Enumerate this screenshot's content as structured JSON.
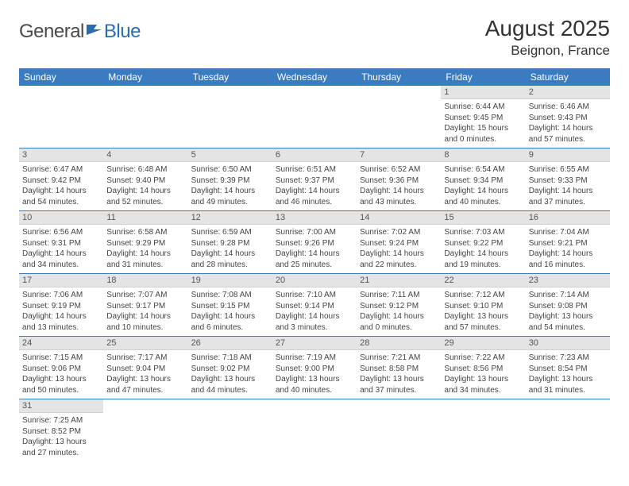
{
  "logo": {
    "general": "General",
    "blue": "Blue"
  },
  "title": "August 2025",
  "location": "Beignon, France",
  "colors": {
    "header_bg": "#3b7bbf",
    "header_text": "#ffffff",
    "daynum_bg": "#e4e4e4",
    "row_border": "#3b7bbf",
    "logo_gray": "#4a4a4a",
    "logo_blue": "#2b6bb0"
  },
  "weekdays": [
    "Sunday",
    "Monday",
    "Tuesday",
    "Wednesday",
    "Thursday",
    "Friday",
    "Saturday"
  ],
  "weeks": [
    [
      null,
      null,
      null,
      null,
      null,
      {
        "n": "1",
        "sr": "Sunrise: 6:44 AM",
        "ss": "Sunset: 9:45 PM",
        "dl": "Daylight: 15 hours and 0 minutes."
      },
      {
        "n": "2",
        "sr": "Sunrise: 6:46 AM",
        "ss": "Sunset: 9:43 PM",
        "dl": "Daylight: 14 hours and 57 minutes."
      }
    ],
    [
      {
        "n": "3",
        "sr": "Sunrise: 6:47 AM",
        "ss": "Sunset: 9:42 PM",
        "dl": "Daylight: 14 hours and 54 minutes."
      },
      {
        "n": "4",
        "sr": "Sunrise: 6:48 AM",
        "ss": "Sunset: 9:40 PM",
        "dl": "Daylight: 14 hours and 52 minutes."
      },
      {
        "n": "5",
        "sr": "Sunrise: 6:50 AM",
        "ss": "Sunset: 9:39 PM",
        "dl": "Daylight: 14 hours and 49 minutes."
      },
      {
        "n": "6",
        "sr": "Sunrise: 6:51 AM",
        "ss": "Sunset: 9:37 PM",
        "dl": "Daylight: 14 hours and 46 minutes."
      },
      {
        "n": "7",
        "sr": "Sunrise: 6:52 AM",
        "ss": "Sunset: 9:36 PM",
        "dl": "Daylight: 14 hours and 43 minutes."
      },
      {
        "n": "8",
        "sr": "Sunrise: 6:54 AM",
        "ss": "Sunset: 9:34 PM",
        "dl": "Daylight: 14 hours and 40 minutes."
      },
      {
        "n": "9",
        "sr": "Sunrise: 6:55 AM",
        "ss": "Sunset: 9:33 PM",
        "dl": "Daylight: 14 hours and 37 minutes."
      }
    ],
    [
      {
        "n": "10",
        "sr": "Sunrise: 6:56 AM",
        "ss": "Sunset: 9:31 PM",
        "dl": "Daylight: 14 hours and 34 minutes."
      },
      {
        "n": "11",
        "sr": "Sunrise: 6:58 AM",
        "ss": "Sunset: 9:29 PM",
        "dl": "Daylight: 14 hours and 31 minutes."
      },
      {
        "n": "12",
        "sr": "Sunrise: 6:59 AM",
        "ss": "Sunset: 9:28 PM",
        "dl": "Daylight: 14 hours and 28 minutes."
      },
      {
        "n": "13",
        "sr": "Sunrise: 7:00 AM",
        "ss": "Sunset: 9:26 PM",
        "dl": "Daylight: 14 hours and 25 minutes."
      },
      {
        "n": "14",
        "sr": "Sunrise: 7:02 AM",
        "ss": "Sunset: 9:24 PM",
        "dl": "Daylight: 14 hours and 22 minutes."
      },
      {
        "n": "15",
        "sr": "Sunrise: 7:03 AM",
        "ss": "Sunset: 9:22 PM",
        "dl": "Daylight: 14 hours and 19 minutes."
      },
      {
        "n": "16",
        "sr": "Sunrise: 7:04 AM",
        "ss": "Sunset: 9:21 PM",
        "dl": "Daylight: 14 hours and 16 minutes."
      }
    ],
    [
      {
        "n": "17",
        "sr": "Sunrise: 7:06 AM",
        "ss": "Sunset: 9:19 PM",
        "dl": "Daylight: 14 hours and 13 minutes."
      },
      {
        "n": "18",
        "sr": "Sunrise: 7:07 AM",
        "ss": "Sunset: 9:17 PM",
        "dl": "Daylight: 14 hours and 10 minutes."
      },
      {
        "n": "19",
        "sr": "Sunrise: 7:08 AM",
        "ss": "Sunset: 9:15 PM",
        "dl": "Daylight: 14 hours and 6 minutes."
      },
      {
        "n": "20",
        "sr": "Sunrise: 7:10 AM",
        "ss": "Sunset: 9:14 PM",
        "dl": "Daylight: 14 hours and 3 minutes."
      },
      {
        "n": "21",
        "sr": "Sunrise: 7:11 AM",
        "ss": "Sunset: 9:12 PM",
        "dl": "Daylight: 14 hours and 0 minutes."
      },
      {
        "n": "22",
        "sr": "Sunrise: 7:12 AM",
        "ss": "Sunset: 9:10 PM",
        "dl": "Daylight: 13 hours and 57 minutes."
      },
      {
        "n": "23",
        "sr": "Sunrise: 7:14 AM",
        "ss": "Sunset: 9:08 PM",
        "dl": "Daylight: 13 hours and 54 minutes."
      }
    ],
    [
      {
        "n": "24",
        "sr": "Sunrise: 7:15 AM",
        "ss": "Sunset: 9:06 PM",
        "dl": "Daylight: 13 hours and 50 minutes."
      },
      {
        "n": "25",
        "sr": "Sunrise: 7:17 AM",
        "ss": "Sunset: 9:04 PM",
        "dl": "Daylight: 13 hours and 47 minutes."
      },
      {
        "n": "26",
        "sr": "Sunrise: 7:18 AM",
        "ss": "Sunset: 9:02 PM",
        "dl": "Daylight: 13 hours and 44 minutes."
      },
      {
        "n": "27",
        "sr": "Sunrise: 7:19 AM",
        "ss": "Sunset: 9:00 PM",
        "dl": "Daylight: 13 hours and 40 minutes."
      },
      {
        "n": "28",
        "sr": "Sunrise: 7:21 AM",
        "ss": "Sunset: 8:58 PM",
        "dl": "Daylight: 13 hours and 37 minutes."
      },
      {
        "n": "29",
        "sr": "Sunrise: 7:22 AM",
        "ss": "Sunset: 8:56 PM",
        "dl": "Daylight: 13 hours and 34 minutes."
      },
      {
        "n": "30",
        "sr": "Sunrise: 7:23 AM",
        "ss": "Sunset: 8:54 PM",
        "dl": "Daylight: 13 hours and 31 minutes."
      }
    ],
    [
      {
        "n": "31",
        "sr": "Sunrise: 7:25 AM",
        "ss": "Sunset: 8:52 PM",
        "dl": "Daylight: 13 hours and 27 minutes."
      },
      null,
      null,
      null,
      null,
      null,
      null
    ]
  ]
}
